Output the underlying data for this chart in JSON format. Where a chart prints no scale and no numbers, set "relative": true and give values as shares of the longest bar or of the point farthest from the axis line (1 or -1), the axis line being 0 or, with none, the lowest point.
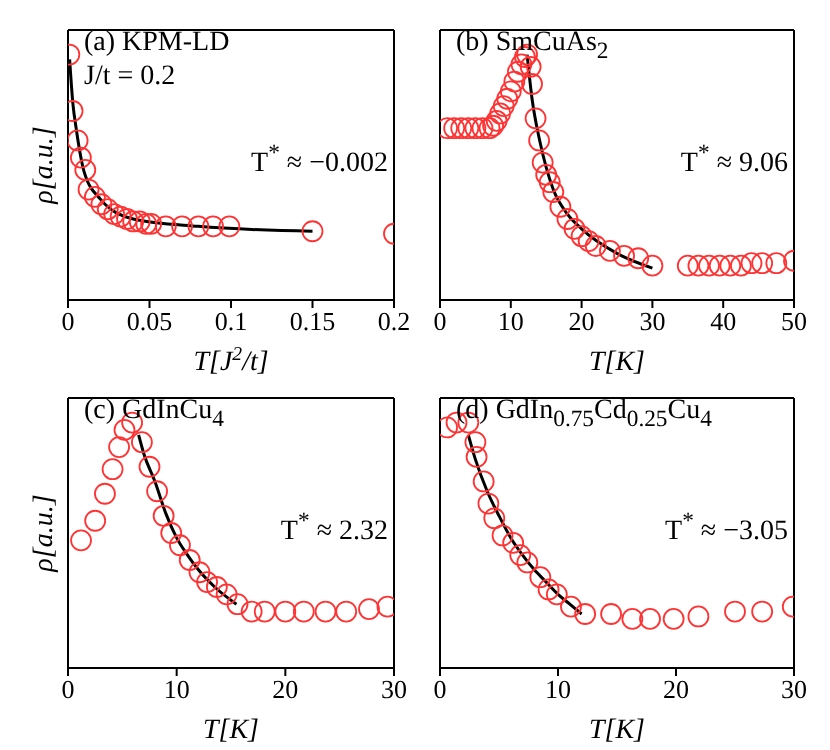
{
  "chart_data": [
    {
      "type": "scatter",
      "relative": true,
      "legend": false,
      "xlabel": "T[J$^{2}$/t]",
      "ylabel": "ρ[a.u.]",
      "xlim": [
        0,
        0.2
      ],
      "xticks": [
        0,
        0.05,
        0.1,
        0.15,
        0.2
      ],
      "annotations": [
        "(a) KPM-LD",
        "J/t = 0.2",
        "T$^{*}$ ≈ −0.002"
      ],
      "series": [
        {
          "marker": "circle",
          "color": "#ff3333",
          "x": [
            0.0008,
            0.0028,
            0.0059,
            0.0079,
            0.0106,
            0.0126,
            0.0165,
            0.0205,
            0.0244,
            0.0283,
            0.0323,
            0.0362,
            0.04,
            0.044,
            0.048,
            0.051,
            0.06,
            0.07,
            0.08,
            0.089,
            0.099,
            0.15,
            0.2
          ],
          "values": [
            1,
            0.77,
            0.65,
            0.58,
            0.53,
            0.45,
            0.42,
            0.39,
            0.37,
            0.35,
            0.34,
            0.33,
            0.32,
            0.32,
            0.31,
            0.31,
            0.3,
            0.3,
            0.3,
            0.3,
            0.3,
            0.28,
            0.27
          ]
        },
        {
          "type": "line",
          "marker": "none",
          "color": "#000000",
          "x": [
            0.001,
            0.003,
            0.005,
            0.01,
            0.02,
            0.04,
            0.08,
            0.15
          ],
          "values": [
            0.98,
            0.8,
            0.7,
            0.52,
            0.41,
            0.33,
            0.3,
            0.28
          ]
        }
      ]
    },
    {
      "type": "scatter",
      "relative": true,
      "legend": false,
      "xlabel": "T[K]",
      "xlim": [
        0,
        50
      ],
      "xticks": [
        0,
        10,
        20,
        30,
        40,
        50
      ],
      "annotations": [
        "(b) SmCuAs$_{2}$",
        "T$^{*}$ ≈ 9.06"
      ],
      "series": [
        {
          "marker": "circle",
          "color": "#ff3333",
          "x": [
            1,
            2,
            3,
            4,
            5,
            6,
            7,
            7.5,
            8,
            8.5,
            9,
            9.5,
            10,
            10.5,
            11,
            11.5,
            12,
            12.3,
            12.8,
            13,
            13.5,
            14,
            14.5,
            15,
            15.5,
            16,
            17,
            18,
            19,
            20,
            21,
            22,
            24,
            26,
            28,
            30,
            35,
            36.5,
            38,
            39.5,
            41,
            42.5,
            44,
            45.5,
            47.5,
            50
          ],
          "values": [
            0.7,
            0.7,
            0.7,
            0.7,
            0.7,
            0.7,
            0.7,
            0.71,
            0.73,
            0.76,
            0.79,
            0.82,
            0.85,
            0.89,
            0.93,
            0.96,
            0.99,
            1,
            0.95,
            0.88,
            0.74,
            0.65,
            0.56,
            0.51,
            0.48,
            0.44,
            0.38,
            0.33,
            0.29,
            0.26,
            0.24,
            0.22,
            0.2,
            0.18,
            0.17,
            0.14,
            0.14,
            0.14,
            0.14,
            0.14,
            0.14,
            0.14,
            0.15,
            0.15,
            0.15,
            0.16
          ]
        },
        {
          "type": "line",
          "marker": "none",
          "color": "#000000",
          "x": [
            12.3,
            13,
            14,
            15,
            16,
            18,
            20,
            25,
            30
          ],
          "values": [
            1,
            0.82,
            0.66,
            0.54,
            0.45,
            0.35,
            0.29,
            0.19,
            0.13
          ]
        }
      ]
    },
    {
      "type": "scatter",
      "relative": true,
      "legend": false,
      "xlabel": "T[K]",
      "ylabel": "ρ[a.u.]",
      "xlim": [
        0,
        30
      ],
      "xticks": [
        0,
        10,
        20,
        30
      ],
      "annotations": [
        "(c) GdInCu$_{4}$",
        "T$^{*}$ ≈ 2.32"
      ],
      "series": [
        {
          "marker": "circle",
          "color": "#ff3333",
          "x": [
            1.2,
            2.5,
            3.4,
            4.1,
            4.7,
            5.2,
            5.9,
            6.8,
            7.5,
            8.2,
            8.8,
            9.5,
            10.3,
            11.2,
            12.1,
            12.8,
            13.7,
            14.6,
            15.6,
            16.9,
            18.1,
            20,
            21.7,
            23.7,
            25.6,
            27.7,
            29.4
          ],
          "values": [
            0.52,
            0.6,
            0.71,
            0.81,
            0.9,
            0.97,
            1,
            0.92,
            0.82,
            0.72,
            0.62,
            0.55,
            0.5,
            0.44,
            0.39,
            0.35,
            0.33,
            0.3,
            0.26,
            0.23,
            0.23,
            0.23,
            0.23,
            0.23,
            0.23,
            0.24,
            0.25
          ]
        },
        {
          "type": "line",
          "marker": "none",
          "color": "#000000",
          "x": [
            6.5,
            7,
            8,
            9,
            10,
            11,
            12,
            13.5,
            15.5
          ],
          "values": [
            0.95,
            0.87,
            0.76,
            0.63,
            0.53,
            0.46,
            0.4,
            0.33,
            0.26
          ]
        }
      ]
    },
    {
      "type": "scatter",
      "relative": true,
      "legend": false,
      "xlabel": "T[K]",
      "xlim": [
        0,
        30
      ],
      "xticks": [
        0,
        10,
        20,
        30
      ],
      "annotations": [
        "(d) GdIn$_{0.75}$Cd$_{0.25}$Cu$_{4}$",
        "T$^{*}$ ≈ −3.05"
      ],
      "series": [
        {
          "marker": "circle",
          "color": "#ff3333",
          "x": [
            0.6,
            1.4,
            2.4,
            3,
            3.1,
            3.7,
            4.1,
            4.6,
            5.3,
            6.2,
            6.8,
            7.4,
            8.5,
            9.2,
            9.9,
            11.1,
            12.3,
            14.5,
            16.3,
            17.8,
            19.8,
            21.9,
            25,
            27.3,
            29.9
          ],
          "values": [
            0.98,
            1,
            1,
            0.92,
            0.86,
            0.76,
            0.67,
            0.61,
            0.54,
            0.51,
            0.46,
            0.43,
            0.37,
            0.32,
            0.3,
            0.25,
            0.22,
            0.22,
            0.2,
            0.2,
            0.2,
            0.21,
            0.23,
            0.23,
            0.25
          ]
        },
        {
          "type": "line",
          "marker": "none",
          "color": "#000000",
          "x": [
            2.4,
            3,
            4,
            5,
            6,
            7,
            8,
            9,
            10,
            11,
            12
          ],
          "values": [
            0.95,
            0.85,
            0.72,
            0.62,
            0.53,
            0.46,
            0.4,
            0.35,
            0.3,
            0.26,
            0.22
          ]
        }
      ]
    }
  ]
}
